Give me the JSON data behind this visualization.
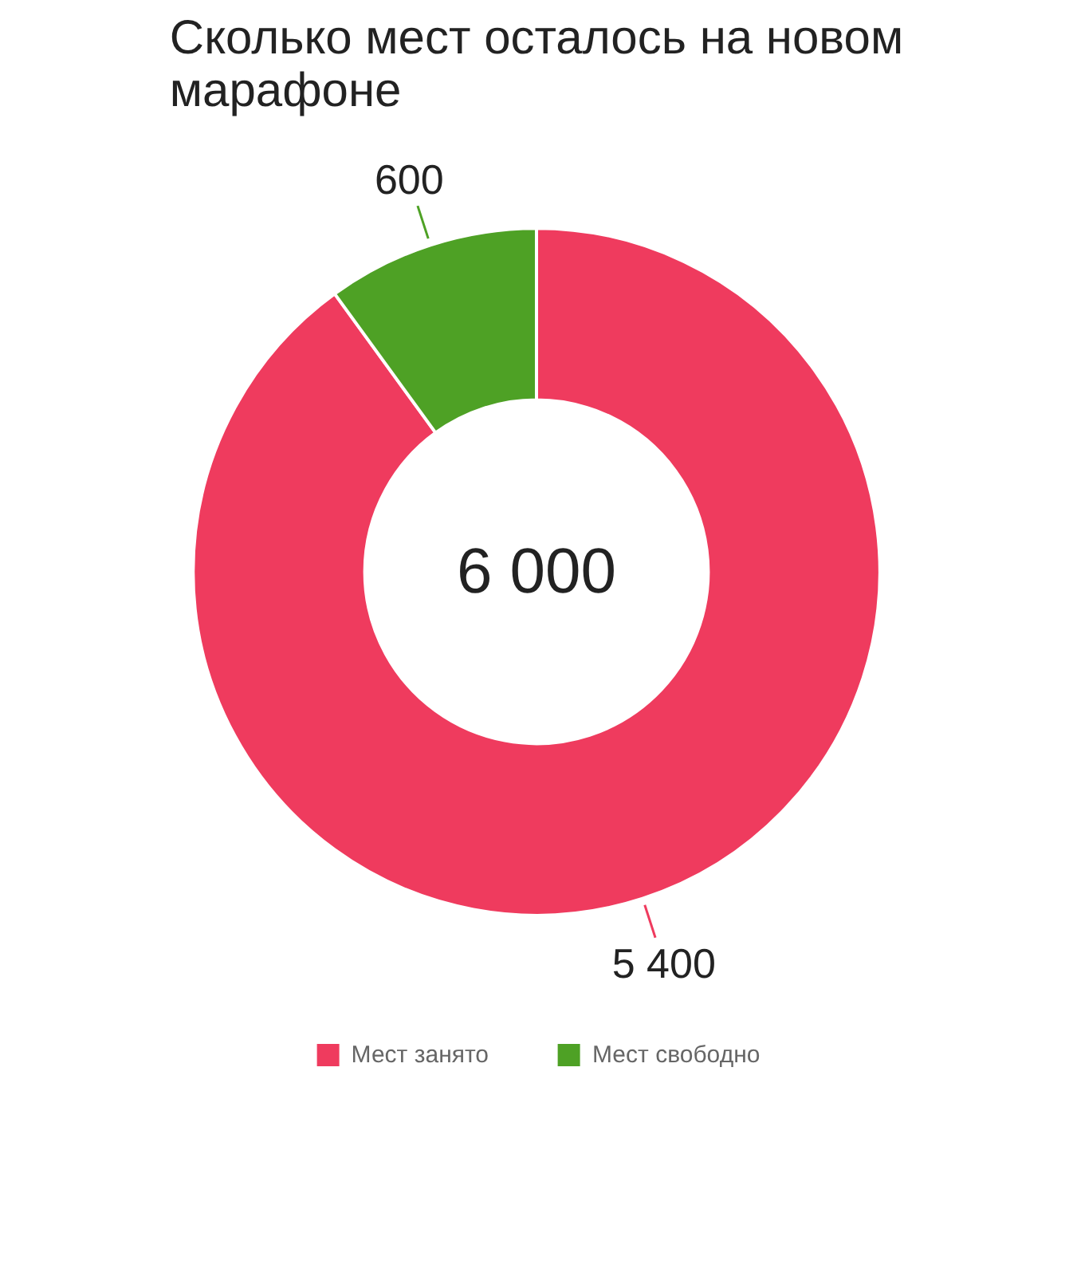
{
  "chart_data": {
    "type": "donut",
    "title": "Сколько мест осталось на новом марафоне",
    "categories": [
      "Мест занято",
      "Мест свободно"
    ],
    "values": [
      5400,
      600
    ],
    "colors": [
      "#ef3b5e",
      "#4ea125"
    ],
    "value_labels": [
      "5 400",
      "600"
    ],
    "annotations": [
      "6 000"
    ],
    "legend": "bottom"
  }
}
